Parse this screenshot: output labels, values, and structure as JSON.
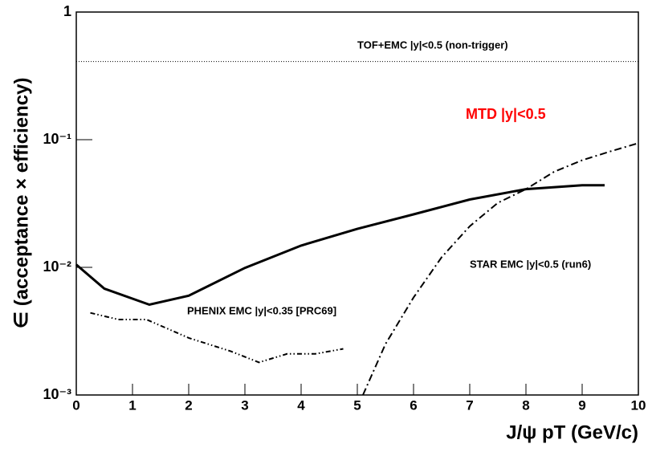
{
  "chart_data": {
    "type": "line",
    "xlabel": "J/ψ pT (GeV/c)",
    "ylabel": "∈ (acceptance × efficiency)",
    "log_y": true,
    "xlim": [
      0,
      10
    ],
    "ylim": [
      0.001,
      1
    ],
    "xticks": [
      0,
      1,
      2,
      3,
      4,
      5,
      6,
      7,
      8,
      9,
      10
    ],
    "yticks": [
      {
        "value": 0.001,
        "label": "10⁻³"
      },
      {
        "value": 0.01,
        "label": "10⁻²"
      },
      {
        "value": 0.1,
        "label": "10⁻¹"
      },
      1
    ],
    "series": [
      {
        "name": "TOF+EMC |y|<0.5 (non-trigger)",
        "color": "#000000",
        "style": "dotted",
        "x": [
          0,
          10
        ],
        "values": [
          0.41,
          0.41
        ]
      },
      {
        "name": "MTD |y|<0.5",
        "color": "#ff0000",
        "line_color": "#000000",
        "style": "solid",
        "x": [
          0,
          0.5,
          1.3,
          2,
          3,
          4,
          5,
          6,
          7,
          8,
          9,
          9.4
        ],
        "values": [
          0.0105,
          0.0068,
          0.0051,
          0.006,
          0.0099,
          0.0148,
          0.02,
          0.026,
          0.034,
          0.041,
          0.044,
          0.044
        ]
      },
      {
        "name": "PHENIX EMC |y|<0.35 [PRC69]",
        "color": "#000000",
        "style": "dashdotdot",
        "x": [
          0.25,
          0.75,
          1.25,
          2,
          2.75,
          3.25,
          3.75,
          4.25,
          4.75
        ],
        "values": [
          0.0044,
          0.0039,
          0.0039,
          0.0028,
          0.0022,
          0.0018,
          0.0021,
          0.0021,
          0.0023
        ]
      },
      {
        "name": "STAR EMC |y|<0.5 (run6)",
        "color": "#000000",
        "style": "dashdot",
        "x": [
          5.1,
          5.5,
          6,
          6.5,
          7,
          7.5,
          8,
          8.5,
          9,
          9.5,
          10
        ],
        "values": [
          0.001,
          0.0025,
          0.0058,
          0.012,
          0.021,
          0.032,
          0.041,
          0.056,
          0.069,
          0.081,
          0.094
        ]
      }
    ]
  }
}
